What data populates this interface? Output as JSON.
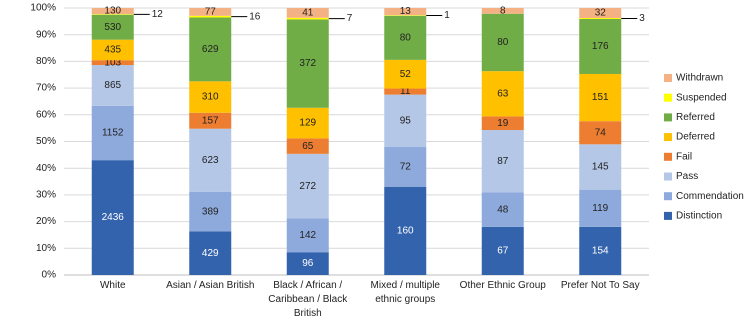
{
  "chart_data": {
    "type": "stacked_percent_bar",
    "categories": [
      "White",
      "Asian / Asian British",
      "Black / African / Caribbean / Black British",
      "Mixed / multiple ethnic groups",
      "Other Ethnic Group",
      "Prefer Not To Say"
    ],
    "series": [
      {
        "name": "Distinction",
        "color": "#3463ad",
        "values": [
          2436,
          429,
          96,
          160,
          67,
          154
        ]
      },
      {
        "name": "Commendation",
        "color": "#8eaadc",
        "values": [
          1152,
          389,
          142,
          72,
          48,
          119
        ]
      },
      {
        "name": "Pass",
        "color": "#b4c7e7",
        "values": [
          865,
          623,
          272,
          95,
          87,
          145
        ]
      },
      {
        "name": "Fail",
        "color": "#ed7d31",
        "values": [
          103,
          157,
          65,
          11,
          19,
          74
        ]
      },
      {
        "name": "Deferred",
        "color": "#ffc000",
        "values": [
          435,
          310,
          129,
          52,
          63,
          151
        ]
      },
      {
        "name": "Referred",
        "color": "#70ad47",
        "values": [
          530,
          629,
          372,
          80,
          80,
          176
        ]
      },
      {
        "name": "Suspended",
        "color": "#ffff00",
        "values": [
          12,
          16,
          7,
          1,
          0,
          3
        ]
      },
      {
        "name": "Withdrawn",
        "color": "#f4b183",
        "values": [
          130,
          77,
          41,
          13,
          8,
          32
        ]
      }
    ],
    "ylim": [
      0,
      100
    ],
    "yticks": [
      {
        "value": 0,
        "label": "0%"
      },
      {
        "value": 10,
        "label": "10%"
      },
      {
        "value": 20,
        "label": "20%"
      },
      {
        "value": 30,
        "label": "30%"
      },
      {
        "value": 40,
        "label": "40%"
      },
      {
        "value": 50,
        "label": "50%"
      },
      {
        "value": 60,
        "label": "60%"
      },
      {
        "value": 70,
        "label": "70%"
      },
      {
        "value": 80,
        "label": "80%"
      },
      {
        "value": 90,
        "label": "90%"
      },
      {
        "value": 100,
        "label": "100%"
      }
    ],
    "grid": true,
    "legend": "right",
    "outside_label_series": "Suspended"
  }
}
